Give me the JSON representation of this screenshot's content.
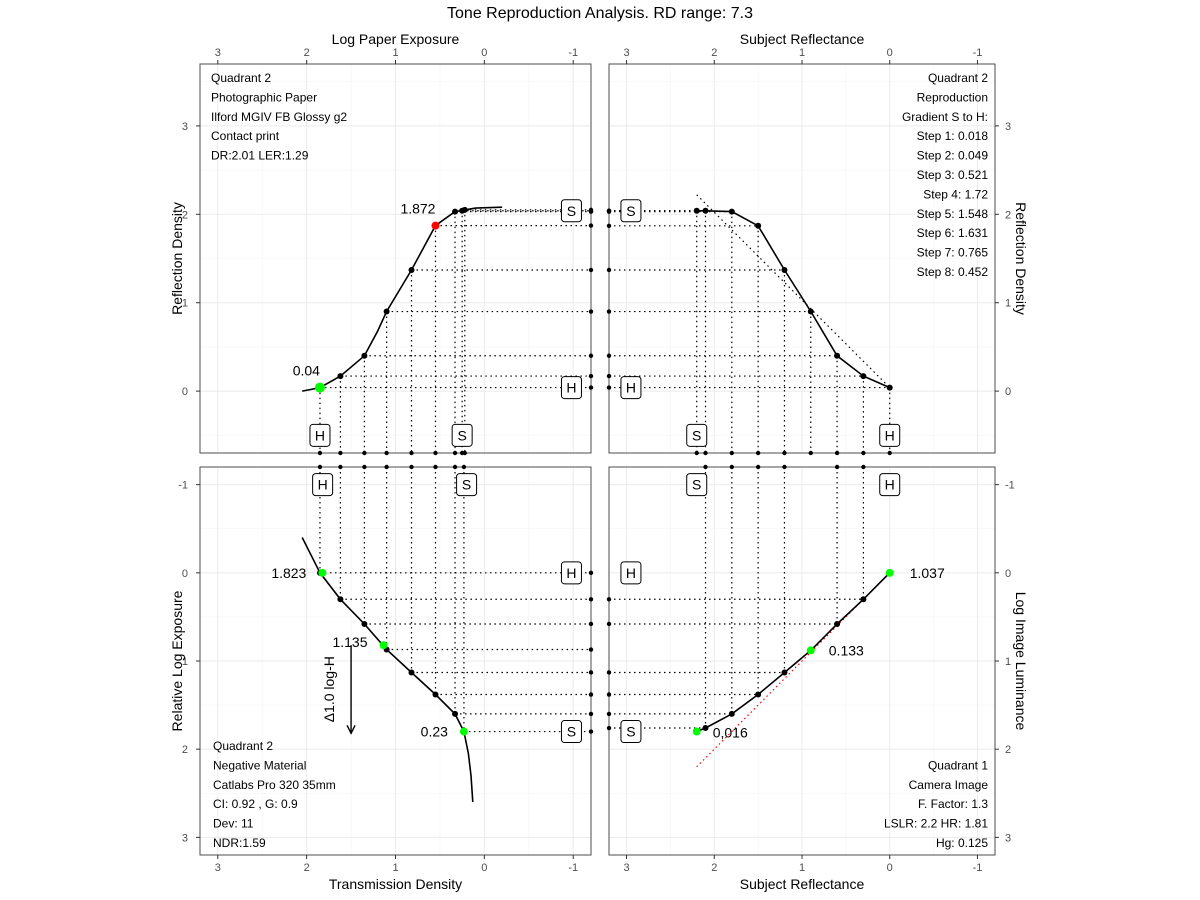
{
  "title": "Tone Reproduction Analysis. RD range: 7.3",
  "chart_data": [
    {
      "type": "line",
      "quadrant": "top-left",
      "xlabel": "Log Paper Exposure",
      "ylabel": "Reflection Density",
      "xticks": [
        "3",
        "2",
        "1",
        "0",
        "-1"
      ],
      "yticks": [
        "3",
        "2",
        "1",
        "0"
      ],
      "xlim": [
        3.2,
        -1.2
      ],
      "ylim": [
        -0.7,
        3.7
      ],
      "curve": {
        "x": [
          2.05,
          1.85,
          1.62,
          1.35,
          1.2,
          1.1,
          0.82,
          0.55,
          0.33,
          0.22,
          0.1,
          -0.2
        ],
        "y": [
          0.0,
          0.04,
          0.17,
          0.4,
          0.68,
          0.9,
          1.37,
          1.872,
          2.03,
          2.05,
          2.07,
          2.08
        ]
      },
      "points": {
        "x": [
          1.85,
          1.62,
          1.35,
          1.1,
          0.82,
          0.55,
          0.33,
          0.25,
          0.22
        ],
        "y": [
          0.04,
          0.17,
          0.4,
          0.9,
          1.37,
          1.872,
          2.03,
          2.04,
          2.05
        ]
      },
      "highlight": [
        {
          "x": 1.85,
          "y": 0.04,
          "color": "#00ff00",
          "label": "0.04"
        },
        {
          "x": 0.55,
          "y": 1.872,
          "color": "#ff0000",
          "label": "1.872"
        }
      ],
      "notes": [
        "Quadrant 2",
        "Photographic Paper",
        "Ilford MGIV FB Glossy g2",
        "Contact print",
        "DR:2.01 LER:1.29"
      ],
      "markers": [
        {
          "text": "H",
          "x": 1.85,
          "y": -0.5
        },
        {
          "text": "S",
          "x": 0.25,
          "y": -0.5
        },
        {
          "text": "S",
          "x": -0.98,
          "y": 2.04
        },
        {
          "text": "H",
          "x": -0.98,
          "y": 0.04
        }
      ]
    },
    {
      "type": "line",
      "quadrant": "top-right",
      "xlabel": "Subject Reflectance",
      "ylabel": "Reflection Density",
      "xticks": [
        "3",
        "2",
        "1",
        "0",
        "-1"
      ],
      "yticks": [
        "3",
        "2",
        "1",
        "0"
      ],
      "xlim": [
        3.2,
        -1.2
      ],
      "ylim": [
        -0.7,
        3.7
      ],
      "curve": {
        "x": [
          2.2,
          2.1,
          1.8,
          1.5,
          1.2,
          0.9,
          0.6,
          0.3,
          0.0
        ],
        "y": [
          2.04,
          2.04,
          2.03,
          1.87,
          1.37,
          0.9,
          0.4,
          0.17,
          0.04
        ]
      },
      "points": {
        "x": [
          2.2,
          2.1,
          1.8,
          1.5,
          1.2,
          0.9,
          0.6,
          0.3,
          0.0
        ],
        "y": [
          2.04,
          2.04,
          2.03,
          1.87,
          1.37,
          0.9,
          0.4,
          0.17,
          0.04
        ]
      },
      "reference_line": {
        "x": [
          2.2,
          0.0
        ],
        "y": [
          2.22,
          0.04
        ]
      },
      "notes": [
        "Quadrant 2",
        "Reproduction",
        "Gradient S to H:",
        "Step 1: 0.018",
        "Step 2: 0.049",
        "Step 3: 0.521",
        "Step 4: 1.72",
        "Step 5: 1.548",
        "Step 6: 1.631",
        "Step 7: 0.765",
        "Step 8: 0.452"
      ],
      "markers": [
        {
          "text": "S",
          "x": 2.2,
          "y": -0.5
        },
        {
          "text": "H",
          "x": 0.0,
          "y": -0.5
        },
        {
          "text": "S",
          "x": 2.95,
          "y": 2.04
        },
        {
          "text": "H",
          "x": 2.95,
          "y": 0.04
        }
      ]
    },
    {
      "type": "line",
      "quadrant": "bottom-left",
      "xlabel": "Transmission Density",
      "ylabel": "Relative Log Exposure",
      "xticks": [
        "3",
        "2",
        "1",
        "0",
        "-1"
      ],
      "yticks": [
        "-1",
        "0",
        "1",
        "2",
        "3"
      ],
      "xlim": [
        3.2,
        -1.2
      ],
      "ylim": [
        -1.2,
        3.2
      ],
      "curve": {
        "x": [
          2.05,
          1.95,
          1.85,
          1.62,
          1.35,
          1.1,
          0.82,
          0.55,
          0.33,
          0.23,
          0.18,
          0.15,
          0.13
        ],
        "y": [
          -0.4,
          -0.2,
          0.0,
          0.3,
          0.58,
          0.87,
          1.13,
          1.38,
          1.6,
          1.8,
          2.05,
          2.3,
          2.6
        ]
      },
      "points": {
        "x": [
          1.85,
          1.62,
          1.35,
          1.1,
          0.82,
          0.55,
          0.33,
          0.23
        ],
        "y": [
          0.0,
          0.3,
          0.58,
          0.87,
          1.13,
          1.38,
          1.6,
          1.8
        ]
      },
      "highlight": [
        {
          "x": 1.823,
          "y": 0.0,
          "color": "#00ff00",
          "label": "1.823"
        },
        {
          "x": 1.135,
          "y": 0.82,
          "color": "#00ff00",
          "label": "1.135"
        },
        {
          "x": 0.23,
          "y": 1.8,
          "color": "#00ff00",
          "label": "0.23"
        }
      ],
      "arrow": {
        "x": 1.5,
        "y1": 0.82,
        "y2": 1.82,
        "label": "Δ1.0 log-H"
      },
      "notes": [
        "Quadrant 2",
        "Negative Material",
        "Catlabs Pro 320 35mm",
        "CI: 0.92 , G: 0.9",
        "Dev: 11",
        "NDR:1.59"
      ],
      "markers": [
        {
          "text": "H",
          "x": 1.82,
          "y": -1.0
        },
        {
          "text": "S",
          "x": 0.2,
          "y": -1.0
        },
        {
          "text": "H",
          "x": -0.98,
          "y": 0.0
        },
        {
          "text": "S",
          "x": -0.98,
          "y": 1.8
        }
      ]
    },
    {
      "type": "line",
      "quadrant": "bottom-right",
      "xlabel": "Subject Reflectance",
      "ylabel": "Log Image Luminance",
      "xticks": [
        "3",
        "2",
        "1",
        "0",
        "-1"
      ],
      "yticks": [
        "-1",
        "0",
        "1",
        "2",
        "3"
      ],
      "xlim": [
        3.2,
        -1.2
      ],
      "ylim": [
        -1.2,
        3.2
      ],
      "curve": {
        "x": [
          2.2,
          2.1,
          1.8,
          1.5,
          1.2,
          0.9,
          0.6,
          0.3,
          0.0
        ],
        "y": [
          1.8,
          1.76,
          1.6,
          1.38,
          1.13,
          0.88,
          0.58,
          0.3,
          0.0
        ]
      },
      "points": {
        "x": [
          2.1,
          1.8,
          1.5,
          1.2,
          0.6,
          0.3
        ],
        "y": [
          1.76,
          1.6,
          1.38,
          1.13,
          0.58,
          0.3
        ]
      },
      "highlight": [
        {
          "x": 0.0,
          "y": 0.0,
          "color": "#00ff00",
          "label": "1.037"
        },
        {
          "x": 0.9,
          "y": 0.88,
          "color": "#00ff00",
          "label": "0.133"
        },
        {
          "x": 2.2,
          "y": 1.8,
          "color": "#00ff00",
          "label": "0,016"
        }
      ],
      "reference_line": {
        "x": [
          2.2,
          0.0
        ],
        "y": [
          2.2,
          0.0
        ],
        "color": "#ff0000"
      },
      "notes": [
        "Quadrant 1",
        "Camera Image",
        "F. Factor: 1.3",
        "LSLR: 2.2  HR: 1.81",
        "Hg: 0.125"
      ],
      "markers": [
        {
          "text": "S",
          "x": 2.2,
          "y": -1.0
        },
        {
          "text": "H",
          "x": 0.0,
          "y": -1.0
        },
        {
          "text": "H",
          "x": 2.95,
          "y": 0.0
        },
        {
          "text": "S",
          "x": 2.95,
          "y": 1.8
        }
      ]
    }
  ]
}
